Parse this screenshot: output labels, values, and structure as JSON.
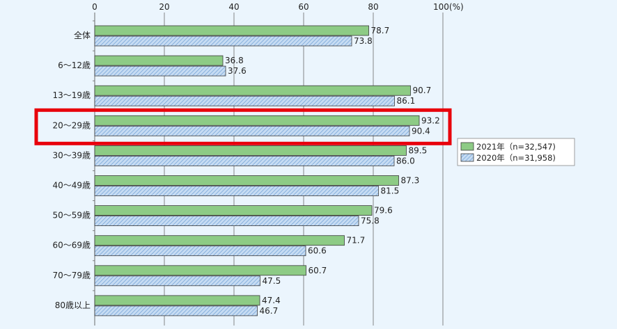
{
  "chart_data": {
    "type": "bar",
    "orientation": "horizontal",
    "categories": [
      "全体",
      "6～12歳",
      "13～19歳",
      "20～29歳",
      "30～39歳",
      "40～49歳",
      "50～59歳",
      "60～69歳",
      "70～79歳",
      "80歳以上"
    ],
    "series": [
      {
        "name": "2021年（n=32,547)",
        "values": [
          78.7,
          36.8,
          90.7,
          93.2,
          89.5,
          87.3,
          79.6,
          71.7,
          60.7,
          47.4
        ],
        "color": "#8dcb85",
        "pattern": "solid"
      },
      {
        "name": "2020年（n=31,958)",
        "values": [
          73.8,
          37.6,
          86.1,
          90.4,
          86.0,
          81.5,
          75.8,
          60.6,
          47.5,
          46.7
        ],
        "color": "#b8d4f0",
        "pattern": "hatched"
      }
    ],
    "value_labels": [
      [
        "78.7",
        "36.8",
        "90.7",
        "93.2",
        "89.5",
        "87.3",
        "79.6",
        "71.7",
        "60.7",
        "47.4"
      ],
      [
        "73.8",
        "37.6",
        "86.1",
        "90.4",
        "86.0",
        "81.5",
        "75.8",
        "60.6",
        "47.5",
        "46.7"
      ]
    ],
    "xticks": [
      "0",
      "20",
      "40",
      "60",
      "80",
      "100(%)"
    ],
    "xlim": [
      0,
      100
    ],
    "grid": true,
    "legend_position": "right",
    "highlighted_category": "20～29歳",
    "highlight_color": "#e8000b"
  }
}
